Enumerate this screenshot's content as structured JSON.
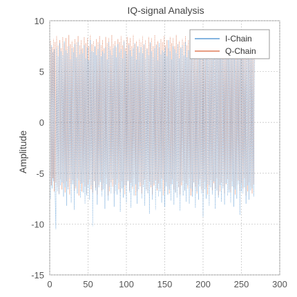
{
  "chart_data": {
    "type": "line",
    "title": "IQ-signal Analysis",
    "xlabel": "",
    "ylabel": "Amplitude",
    "xlim": [
      0,
      300
    ],
    "ylim": [
      -15,
      10
    ],
    "xticks": [
      0,
      50,
      100,
      150,
      200,
      250,
      300
    ],
    "yticks": [
      -15,
      -10,
      -5,
      0,
      5,
      10
    ],
    "grid": true,
    "legend_position": "top-right",
    "series": [
      {
        "name": "I-Chain",
        "color": "#5b9bd5",
        "values": [
          -7.5,
          7.6,
          -6.5,
          6.9,
          -5.8,
          7.2,
          -7.0,
          -10.5,
          7.4,
          -6.8,
          6.5,
          -7.1,
          7.8,
          -6.2,
          7.0,
          -5.9,
          6.6,
          -7.3,
          8.0,
          -6.4,
          7.1,
          -8.2,
          6.8,
          -6.6,
          7.5,
          -5.5,
          6.2,
          -7.9,
          7.3,
          -6.1,
          6.9,
          -8.6,
          7.7,
          -6.3,
          6.4,
          -7.0,
          7.9,
          -5.7,
          6.7,
          -7.4,
          7.2,
          -6.0,
          6.8,
          -6.9,
          7.6,
          -8.0,
          6.3,
          -7.2,
          7.4,
          -6.5,
          6.1,
          -7.6,
          8.1,
          -6.2,
          7.0,
          -10.2,
          6.9,
          -5.8,
          7.5,
          -6.7,
          6.6,
          -8.1,
          7.2,
          -6.4,
          7.8,
          -5.9,
          6.5,
          -7.3,
          7.0,
          -6.6,
          6.8,
          -8.5,
          7.4,
          -6.1,
          6.2,
          -7.7,
          7.9,
          -6.3,
          7.1,
          -7.0,
          6.6,
          -5.6,
          7.3,
          -8.3,
          7.5,
          -6.8,
          6.4,
          -7.1,
          7.7,
          -6.0,
          6.9,
          -8.8,
          7.2,
          -6.5,
          6.3,
          -7.4,
          8.0,
          -6.2,
          7.0,
          -7.9,
          6.7,
          -5.8,
          7.6,
          -6.9,
          7.1,
          -8.4,
          6.5,
          -6.3,
          7.3,
          -7.2,
          7.8,
          -6.1,
          6.2,
          -8.0,
          7.5,
          -6.6,
          6.9,
          -5.9,
          7.4,
          -7.5,
          6.8,
          -6.4,
          7.7,
          -8.2,
          6.3,
          -6.7,
          7.2,
          -7.0,
          6.6,
          -9.0,
          7.9,
          -6.2,
          7.0,
          -7.6,
          6.4,
          -6.0,
          7.3,
          -8.6,
          7.6,
          -6.5,
          6.1,
          -7.3,
          7.8,
          -6.8,
          6.7,
          -7.9,
          7.1,
          -5.7,
          6.9,
          -8.3,
          7.4,
          -6.3,
          6.5,
          -7.1,
          8.1,
          -6.6,
          7.0,
          -7.7,
          6.2,
          -6.1,
          7.5,
          -8.1,
          7.2,
          -6.9,
          6.8,
          -7.4,
          7.7,
          -6.4,
          6.3,
          -8.7,
          7.3,
          -5.9,
          7.6,
          -7.2,
          6.6,
          -6.7,
          7.9,
          -7.8,
          6.4,
          -6.2,
          7.1,
          -8.0,
          7.4,
          -6.5,
          6.7,
          -7.3,
          7.0,
          -6.0,
          6.9,
          -8.4,
          7.8,
          -6.8,
          6.2,
          -7.6,
          7.5,
          -6.3,
          7.2,
          -7.0,
          6.5,
          -9.3,
          7.3,
          -6.6,
          6.8,
          -7.5,
          7.7,
          -6.1,
          6.4,
          -8.2,
          7.1,
          -6.4,
          7.6,
          -7.1,
          6.6,
          -5.8,
          7.4,
          -8.5,
          7.9,
          -6.7,
          6.3,
          -7.4,
          7.0,
          -6.2,
          7.2,
          -7.8,
          6.9,
          -6.5,
          7.5,
          -8.1,
          6.7,
          -6.0,
          7.3,
          -7.2,
          7.8,
          -6.9,
          6.5,
          -7.9,
          7.1,
          -6.3,
          6.8,
          -8.3,
          7.4,
          -6.6,
          6.2,
          -7.5,
          7.7,
          -6.1,
          7.0,
          -9.1,
          6.6,
          -6.8,
          7.6,
          -7.0,
          7.2,
          -6.4,
          6.9,
          -8.0,
          7.5,
          -6.2,
          6.4,
          -7.6,
          7.8,
          -6.7,
          7.1,
          -6.5,
          6.3,
          -7.3,
          6.8
        ]
      },
      {
        "name": "Q-Chain",
        "color": "#e07b56",
        "values": [
          8.0,
          -6.2,
          7.4,
          -5.5,
          8.2,
          -6.8,
          7.9,
          -5.9,
          8.5,
          -6.3,
          7.6,
          -7.0,
          8.1,
          -5.6,
          7.3,
          -6.6,
          8.4,
          -6.0,
          7.8,
          -6.9,
          8.3,
          -5.8,
          7.5,
          -6.4,
          8.6,
          -7.1,
          7.7,
          -6.1,
          8.0,
          -5.7,
          7.4,
          -6.7,
          8.2,
          -6.5,
          7.9,
          -5.5,
          8.5,
          -7.2,
          7.6,
          -6.0,
          8.1,
          -6.8,
          7.3,
          -5.9,
          8.4,
          -6.3,
          7.8,
          -7.0,
          8.3,
          -6.1,
          7.5,
          -5.6,
          8.6,
          -6.6,
          7.7,
          -6.9,
          8.0,
          -5.8,
          7.4,
          -6.4,
          8.2,
          -7.1,
          7.9,
          -6.2,
          8.5,
          -5.7,
          7.6,
          -6.7,
          8.1,
          -6.0,
          7.3,
          -6.5,
          8.4,
          -5.5,
          7.8,
          -7.2,
          8.3,
          -6.8,
          7.5,
          -5.9,
          8.6,
          -6.3,
          7.7,
          -7.0,
          8.0,
          -6.1,
          7.4,
          -5.6,
          8.2,
          -6.6,
          7.9,
          -6.9,
          8.5,
          -5.8,
          7.6,
          -6.4,
          8.1,
          -7.1,
          7.3,
          -6.2,
          8.4,
          -5.7,
          7.8,
          -6.7,
          8.3,
          -6.0,
          7.5,
          -6.5,
          8.6,
          -5.5,
          7.7,
          -7.2,
          8.0,
          -6.8,
          7.4,
          -5.9,
          8.2,
          -6.3,
          7.9,
          -7.0,
          8.5,
          -6.1,
          7.6,
          -5.6,
          8.1,
          -6.6,
          7.3,
          -6.9,
          8.4,
          -5.8,
          7.8,
          -6.4,
          8.3,
          -7.1,
          7.5,
          -6.2,
          8.6,
          -5.7,
          7.7,
          -6.7,
          8.0,
          -6.0,
          7.4,
          -6.5,
          8.2,
          -5.5,
          7.9,
          -7.2,
          8.5,
          -6.8,
          7.6,
          -5.9,
          8.1,
          -6.3,
          7.3,
          -7.0,
          8.4,
          -6.1,
          7.8,
          -5.6,
          8.3,
          -6.6,
          7.5,
          -6.9,
          8.6,
          -5.8,
          7.7,
          -6.4,
          8.0,
          -7.1,
          7.4,
          -6.2,
          8.2,
          -5.7,
          7.9,
          -6.7,
          8.5,
          -6.0,
          7.6,
          -6.5,
          8.1,
          -5.5,
          7.3,
          -7.2,
          8.4,
          -6.8,
          7.8,
          -5.9,
          8.3,
          -6.3,
          7.5,
          -7.0,
          8.6,
          -6.1,
          7.7,
          -5.6,
          8.0,
          -6.6,
          7.4,
          -6.9,
          8.2,
          -5.8,
          7.9,
          -6.4,
          8.5,
          -7.1,
          7.6,
          -6.2,
          8.1,
          -5.7,
          7.3,
          -6.7,
          8.4,
          -6.0,
          7.8,
          -6.5,
          8.3,
          -5.5,
          7.5,
          -7.2,
          8.6,
          -6.8,
          7.7,
          -5.9,
          8.0,
          -6.3,
          7.4,
          -7.0,
          8.2,
          -6.1,
          7.9,
          -5.6,
          8.5,
          -6.6,
          7.6,
          -6.9,
          8.1,
          -5.8,
          7.3,
          -6.4,
          8.4,
          -7.1,
          7.8,
          -6.2,
          8.3,
          -5.7,
          7.5,
          -6.7,
          8.6,
          -6.0,
          7.7,
          -6.5,
          8.0,
          -5.5,
          7.4,
          -7.2,
          8.2,
          -6.8,
          7.9,
          -5.9,
          8.5,
          -6.3,
          7.6,
          -7.0,
          8.1,
          -6.1,
          7.3
        ]
      }
    ]
  }
}
